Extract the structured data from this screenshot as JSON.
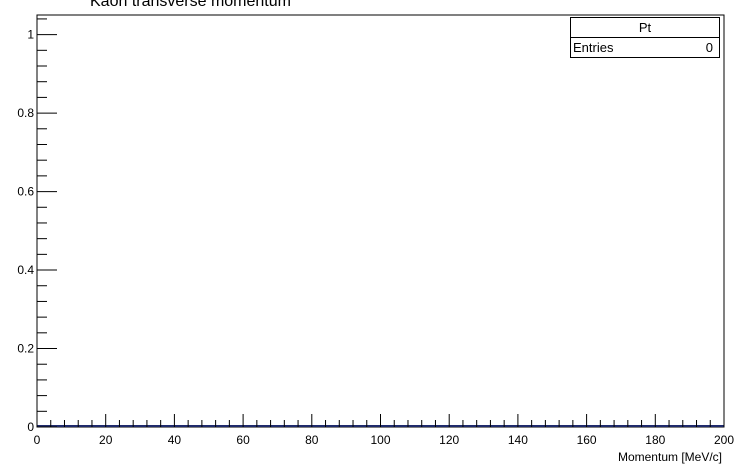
{
  "chart_data": {
    "type": "bar",
    "title": "Kaon transverse momentum",
    "xlabel": "Momentum [MeV/c]",
    "ylabel": "",
    "xlim": [
      0,
      200
    ],
    "ylim": [
      0,
      1.05
    ],
    "x_ticks": [
      0,
      20,
      40,
      60,
      80,
      100,
      120,
      140,
      160,
      180,
      200
    ],
    "x_tick_labels": [
      "0",
      "20",
      "40",
      "60",
      "80",
      "100",
      "120",
      "140",
      "160",
      "180",
      "200"
    ],
    "y_ticks": [
      0,
      0.2,
      0.4,
      0.6,
      0.8,
      1
    ],
    "y_tick_labels": [
      "0",
      "0.2",
      "0.4",
      "0.6",
      "0.8",
      "1"
    ],
    "values": [],
    "grid": false
  },
  "stats_box": {
    "name": "Pt",
    "entries_label": "Entries",
    "entries_value": "0"
  }
}
